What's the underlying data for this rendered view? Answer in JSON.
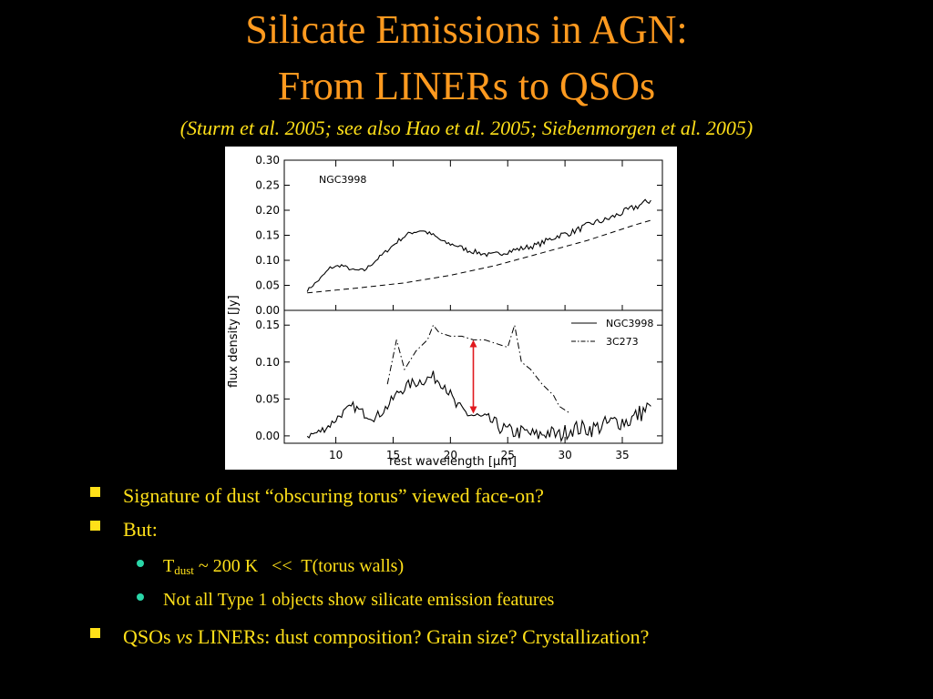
{
  "slide": {
    "title_line1": "Silicate Emissions in AGN:",
    "title_line2": "From LINERs to QSOs",
    "citation": "(Sturm et al. 2005; see also Hao et al. 2005; Siebenmorgen et al. 2005)"
  },
  "colors": {
    "title": "#ff9a1f",
    "text": "#ffe019",
    "sub_bullet": "#2ad6a8",
    "arrow": "#e0191e"
  },
  "bullets": {
    "b1": "Signature of dust “obscuring torus” viewed face-on?",
    "b2": "But:",
    "b2_sub1": {
      "T": "T",
      "sub": "dust",
      "rest": " ~ 200 K   <<  T(torus walls)"
    },
    "b2_sub2": "Not all Type 1 objects show silicate emission features",
    "b3": {
      "qsos": "QSOs ",
      "vs": "vs",
      "liners": " LINERs:",
      "rest": " dust composition? Grain size? Crystallization?"
    }
  },
  "chart_data": [
    {
      "type": "line",
      "label": "NGC3998",
      "xlabel": "rest wavelength [μm]",
      "ylabel": "flux density [Jy]",
      "xlim": [
        5.5,
        38.5
      ],
      "ylim": [
        0.0,
        0.3
      ],
      "yticks": [
        "0.00",
        "0.05",
        "0.10",
        "0.15",
        "0.20",
        "0.25",
        "0.30"
      ],
      "series": [
        {
          "style": "solid-noisy",
          "x": [
            7.5,
            8.5,
            9.5,
            10.5,
            11.5,
            12.5,
            13.5,
            14.5,
            15.5,
            16.5,
            17.5,
            18.5,
            19.5,
            20.5,
            21.5,
            22.5,
            23.5,
            24.5,
            25.5,
            26.5,
            27.5,
            28.5,
            29.5,
            30.5,
            31.5,
            32.5,
            33.5,
            34.5,
            35.5,
            36.5,
            37.5
          ],
          "y": [
            0.04,
            0.06,
            0.085,
            0.09,
            0.08,
            0.08,
            0.1,
            0.12,
            0.14,
            0.155,
            0.16,
            0.15,
            0.135,
            0.13,
            0.12,
            0.115,
            0.11,
            0.115,
            0.12,
            0.125,
            0.13,
            0.14,
            0.15,
            0.155,
            0.165,
            0.175,
            0.18,
            0.19,
            0.2,
            0.21,
            0.22
          ]
        },
        {
          "style": "dashed",
          "x": [
            7.5,
            12,
            16,
            20,
            24,
            28,
            32,
            36,
            37.5
          ],
          "y": [
            0.035,
            0.045,
            0.055,
            0.07,
            0.09,
            0.115,
            0.14,
            0.17,
            0.18
          ]
        }
      ]
    },
    {
      "type": "line",
      "xlim": [
        5.5,
        38.5
      ],
      "ylim": [
        -0.01,
        0.17
      ],
      "yticks": [
        "0.00",
        "0.05",
        "0.10",
        "0.15"
      ],
      "xticks": [
        "10",
        "15",
        "20",
        "25",
        "30",
        "35"
      ],
      "legend": "top-right",
      "series": [
        {
          "name": "NGC3998",
          "style": "solid-noisy",
          "x": [
            7.5,
            8.5,
            9.5,
            10.5,
            11.5,
            12.5,
            13.5,
            14.5,
            15.5,
            16.5,
            17.5,
            18.5,
            19.5,
            20.5,
            21.5,
            22.5,
            23.5,
            24.5,
            25.5,
            26.5,
            27.5,
            28.5,
            29.5,
            30.5,
            31.5,
            32.5,
            33.5,
            34.5,
            35.5,
            36.5,
            37.5
          ],
          "y": [
            0.0,
            0.005,
            0.015,
            0.03,
            0.04,
            0.03,
            0.025,
            0.04,
            0.06,
            0.07,
            0.075,
            0.08,
            0.07,
            0.04,
            0.03,
            0.025,
            0.02,
            0.01,
            0.005,
            0.005,
            0.0,
            0.005,
            0.0,
            0.01,
            0.01,
            0.01,
            0.015,
            0.02,
            0.02,
            0.03,
            0.04
          ]
        },
        {
          "name": "3C273",
          "style": "dashdot",
          "x": [
            14.5,
            15.3,
            16.0,
            17.0,
            18.0,
            18.5,
            19.0,
            20.0,
            21.0,
            22.0,
            23.0,
            24.0,
            25.0,
            25.6,
            26.2,
            27.0,
            28.0,
            29.0,
            29.5,
            30.5
          ],
          "y": [
            0.07,
            0.13,
            0.09,
            0.115,
            0.13,
            0.15,
            0.14,
            0.135,
            0.135,
            0.13,
            0.13,
            0.125,
            0.12,
            0.15,
            0.1,
            0.09,
            0.07,
            0.055,
            0.04,
            0.03
          ]
        }
      ],
      "annotation": {
        "type": "double-arrow",
        "x": 22,
        "y_from": 0.03,
        "y_to": 0.13
      }
    }
  ]
}
